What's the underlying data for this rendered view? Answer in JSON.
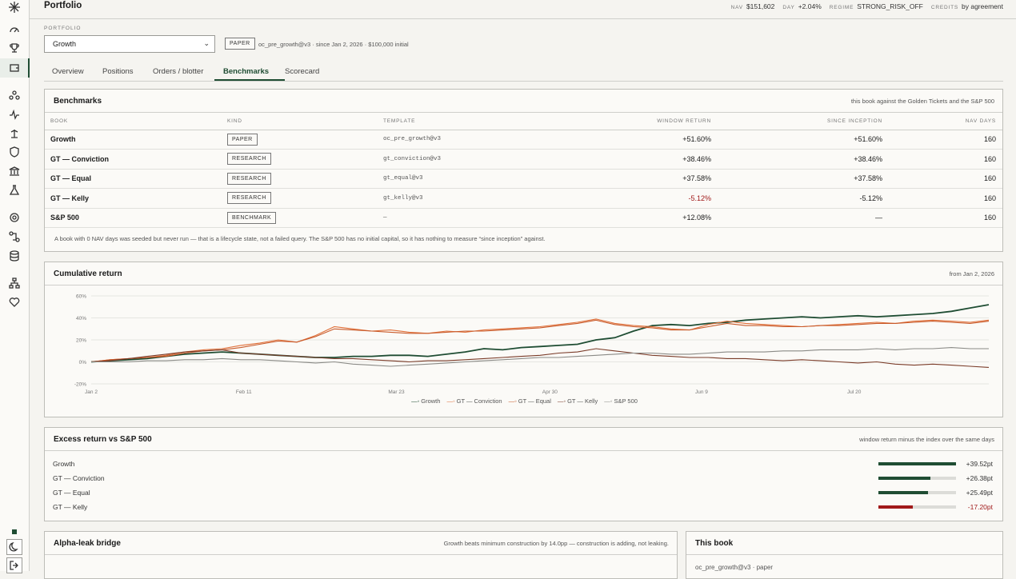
{
  "app": {
    "title": "Portfolio",
    "stats": [
      {
        "key": "NAV",
        "value": "$151,602"
      },
      {
        "key": "DAY",
        "value": "+2.04%"
      },
      {
        "key": "REGIME",
        "value": "STRONG_RISK_OFF"
      },
      {
        "key": "CREDITS",
        "value": "by agreement"
      }
    ]
  },
  "sidebar": {
    "icons": [
      "logo-icon",
      "gauge-icon",
      "trophy-icon",
      "wallet-icon",
      "network-icon",
      "pulse-icon",
      "scale-icon",
      "shield-icon",
      "bank-icon",
      "flask-icon",
      "target-icon",
      "route-icon",
      "database-icon",
      "hierarchy-icon",
      "heart-icon",
      "status-dot-icon",
      "moon-icon",
      "logout-icon"
    ]
  },
  "portfolio": {
    "label": "PORTFOLIO",
    "selected": "Growth",
    "tag": "PAPER",
    "meta": "oc_pre_growth@v3 · since Jan 2, 2026 · $100,000 initial"
  },
  "tabs": [
    "Overview",
    "Positions",
    "Orders / blotter",
    "Benchmarks",
    "Scorecard"
  ],
  "active_tab": "Benchmarks",
  "benchmarks": {
    "title": "Benchmarks",
    "subtitle": "this book against the Golden Tickets and the S&P 500",
    "columns": [
      "BOOK",
      "KIND",
      "TEMPLATE",
      "WINDOW RETURN",
      "SINCE INCEPTION",
      "NAV DAYS"
    ],
    "rows": [
      {
        "book": "Growth",
        "kind": "PAPER",
        "template": "oc_pre_growth@v3",
        "window": "+51.60%",
        "inception": "+51.60%",
        "days": "160"
      },
      {
        "book": "GT — Conviction",
        "kind": "RESEARCH",
        "template": "gt_conviction@v3",
        "window": "+38.46%",
        "inception": "+38.46%",
        "days": "160"
      },
      {
        "book": "GT — Equal",
        "kind": "RESEARCH",
        "template": "gt_equal@v3",
        "window": "+37.58%",
        "inception": "+37.58%",
        "days": "160"
      },
      {
        "book": "GT — Kelly",
        "kind": "RESEARCH",
        "template": "gt_kelly@v3",
        "window": "-5.12%",
        "inception": "-5.12%",
        "days": "160"
      },
      {
        "book": "S&P 500",
        "kind": "BENCHMARK",
        "template": "—",
        "window": "+12.08%",
        "inception": "—",
        "days": "160"
      }
    ],
    "note": "A book with 0 NAV days was seeded but never run — that is a lifecycle state, not a failed query. The S&P 500 has no initial capital, so it has nothing to measure “since inception” against."
  },
  "cumulative": {
    "title": "Cumulative return",
    "subtitle": "from Jan 2, 2026"
  },
  "chart_data": {
    "type": "line",
    "title": "Cumulative return",
    "ylim": [
      -20,
      60
    ],
    "yticks": [
      "60%",
      "40%",
      "20%",
      "0%",
      "-20%"
    ],
    "xticks": [
      "Jan 2",
      "Feb 11",
      "Mar 23",
      "Apr 30",
      "Jun 9",
      "Jul 20"
    ],
    "legend_position": "bottom",
    "series": [
      {
        "name": "Growth",
        "color": "#1f4d33",
        "values": [
          0,
          1,
          2,
          3,
          5,
          7,
          8,
          9,
          8,
          7,
          6,
          5,
          4,
          4,
          5,
          5,
          6,
          6,
          5,
          7,
          9,
          12,
          11,
          13,
          14,
          15,
          16,
          20,
          22,
          28,
          33,
          34,
          33,
          35,
          36,
          38,
          39,
          40,
          41,
          40,
          41,
          42,
          41,
          42,
          43,
          44,
          46,
          49,
          52
        ]
      },
      {
        "name": "GT — Conviction",
        "color": "#e0703a",
        "values": [
          0,
          2,
          3,
          4,
          6,
          9,
          11,
          12,
          15,
          17,
          20,
          18,
          24,
          32,
          30,
          28,
          29,
          27,
          26,
          28,
          27,
          29,
          30,
          31,
          32,
          34,
          36,
          39,
          35,
          33,
          32,
          30,
          29,
          34,
          37,
          35,
          34,
          33,
          32,
          33,
          34,
          35,
          36,
          35,
          37,
          38,
          37,
          36,
          38
        ]
      },
      {
        "name": "GT — Equal",
        "color": "#c85a2a",
        "values": [
          0,
          2,
          3,
          4,
          5,
          8,
          10,
          11,
          13,
          16,
          19,
          18,
          23,
          30,
          29,
          28,
          27,
          26,
          26,
          27,
          28,
          28,
          29,
          30,
          31,
          33,
          35,
          38,
          34,
          32,
          31,
          29,
          29,
          32,
          35,
          33,
          33,
          32,
          32,
          33,
          33,
          34,
          35,
          35,
          36,
          37,
          36,
          35,
          37
        ]
      },
      {
        "name": "GT — Kelly",
        "color": "#7a3b28",
        "values": [
          0,
          1,
          3,
          5,
          7,
          9,
          10,
          11,
          8,
          7,
          6,
          5,
          4,
          3,
          3,
          2,
          1,
          0,
          1,
          1,
          2,
          3,
          4,
          5,
          6,
          8,
          9,
          12,
          10,
          8,
          6,
          5,
          4,
          4,
          3,
          3,
          2,
          1,
          2,
          1,
          0,
          -1,
          0,
          -2,
          -3,
          -2,
          -3,
          -4,
          -5
        ]
      },
      {
        "name": "S&P 500",
        "color": "#8a8a86",
        "values": [
          0,
          0,
          0,
          1,
          1,
          2,
          2,
          3,
          2,
          2,
          1,
          0,
          -1,
          0,
          -2,
          -3,
          -4,
          -3,
          -2,
          -1,
          0,
          1,
          2,
          3,
          4,
          4,
          5,
          6,
          7,
          8,
          8,
          7,
          7,
          8,
          9,
          9,
          9,
          10,
          10,
          11,
          11,
          11,
          12,
          11,
          12,
          12,
          13,
          12,
          12
        ]
      }
    ]
  },
  "excess": {
    "title": "Excess return vs S&P 500",
    "subtitle": "window return minus the index over the same days",
    "rows": [
      {
        "name": "Growth",
        "value": "+39.52pt",
        "pct": 100,
        "color": "#1f4d33"
      },
      {
        "name": "GT — Conviction",
        "value": "+26.38pt",
        "pct": 67,
        "color": "#1f4d33"
      },
      {
        "name": "GT — Equal",
        "value": "+25.49pt",
        "pct": 64,
        "color": "#1f4d33"
      },
      {
        "name": "GT — Kelly",
        "value": "-17.20pt",
        "pct": 44,
        "color": "#a11a1a"
      }
    ]
  },
  "alpha": {
    "title": "Alpha-leak bridge",
    "subtitle": "Growth beats minimum construction by 14.0pp — construction is adding, not leaking."
  },
  "thisbook": {
    "title": "This book",
    "meta": "oc_pre_growth@v3 · paper"
  }
}
